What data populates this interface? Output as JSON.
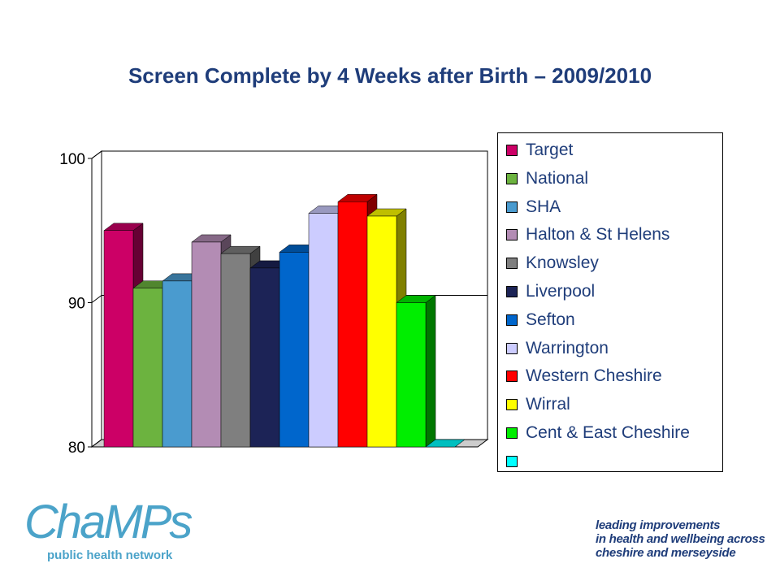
{
  "chart_data": {
    "type": "bar",
    "title": "Screen Complete by 4 Weeks after Birth – 2009/2010",
    "xlabel": "",
    "ylabel": "",
    "ylim": [
      80,
      100
    ],
    "yticks": [
      "80",
      "90",
      "100"
    ],
    "grid": true,
    "three_d": true,
    "legend_position": "right",
    "series": [
      {
        "name": "Target",
        "value": 95,
        "color": "#cc0066"
      },
      {
        "name": "National",
        "value": 91,
        "color": "#6cb33f"
      },
      {
        "name": "SHA",
        "value": 91.5,
        "color": "#4a9bcf"
      },
      {
        "name": "Halton & St Helens",
        "value": 94.2,
        "color": "#b38cb4"
      },
      {
        "name": "Knowsley",
        "value": 93.4,
        "color": "#7f7f7f"
      },
      {
        "name": "Liverpool",
        "value": 92.4,
        "color": "#1c2356"
      },
      {
        "name": "Sefton",
        "value": 93.5,
        "color": "#0066cc"
      },
      {
        "name": "Warrington",
        "value": 96.2,
        "color": "#ccccff"
      },
      {
        "name": "Western Cheshire",
        "value": 97,
        "color": "#ff0000"
      },
      {
        "name": "Wirral",
        "value": 96,
        "color": "#ffff00"
      },
      {
        "name": "Cent & East Cheshire",
        "value": 90,
        "color": "#00ee00"
      },
      {
        "name": "",
        "value": 80,
        "color": "#00ffff"
      }
    ]
  },
  "logo": {
    "name": "ChaMPs",
    "subtitle": "public health network"
  },
  "tagline": {
    "line1": "leading improvements",
    "line2": "in health and wellbeing across",
    "line3": "cheshire and merseyside"
  }
}
